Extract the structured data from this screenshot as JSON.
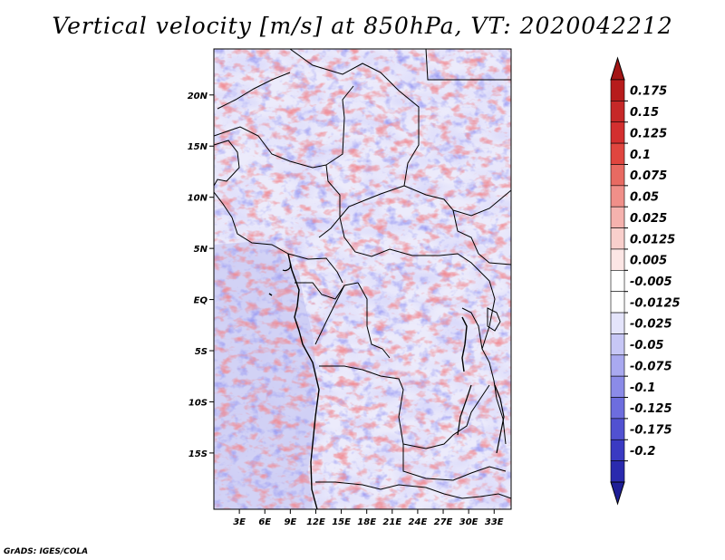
{
  "title": "Vertical velocity [m/s] at 850hPa, VT: 2020042212",
  "credit": "GrADS: IGES/COLA",
  "map": {
    "lon_range": [
      0,
      35
    ],
    "lat_range": [
      -20.5,
      24.5
    ],
    "lat_ticks": [
      {
        "value": 20,
        "label": "20N"
      },
      {
        "value": 15,
        "label": "15N"
      },
      {
        "value": 10,
        "label": "10N"
      },
      {
        "value": 5,
        "label": "5N"
      },
      {
        "value": 0,
        "label": "EQ"
      },
      {
        "value": -5,
        "label": "5S"
      },
      {
        "value": -10,
        "label": "10S"
      },
      {
        "value": -15,
        "label": "15S"
      }
    ],
    "lon_ticks": [
      {
        "value": 3,
        "label": "3E"
      },
      {
        "value": 6,
        "label": "6E"
      },
      {
        "value": 9,
        "label": "9E"
      },
      {
        "value": 12,
        "label": "12E"
      },
      {
        "value": 15,
        "label": "15E"
      },
      {
        "value": 18,
        "label": "18E"
      },
      {
        "value": 21,
        "label": "21E"
      },
      {
        "value": 24,
        "label": "24E"
      },
      {
        "value": 27,
        "label": "27E"
      },
      {
        "value": 30,
        "label": "30E"
      },
      {
        "value": 33,
        "label": "33E"
      }
    ]
  },
  "colorbar": {
    "levels": [
      {
        "label": "0.175",
        "color": "#b71c1c"
      },
      {
        "label": "0.15",
        "color": "#c62828"
      },
      {
        "label": "0.125",
        "color": "#d32f2f"
      },
      {
        "label": "0.1",
        "color": "#e0463f"
      },
      {
        "label": "0.075",
        "color": "#e86a62"
      },
      {
        "label": "0.05",
        "color": "#f08f89"
      },
      {
        "label": "0.025",
        "color": "#f5b2ae"
      },
      {
        "label": "0.0125",
        "color": "#f9cfcc"
      },
      {
        "label": "0.005",
        "color": "#fce6e5"
      },
      {
        "label": "-0.005",
        "color": "#ffffff"
      },
      {
        "label": "-0.0125",
        "color": "#e4e4fb"
      },
      {
        "label": "-0.025",
        "color": "#c7c7f6"
      },
      {
        "label": "-0.05",
        "color": "#a9a9f0"
      },
      {
        "label": "-0.075",
        "color": "#8b8be8"
      },
      {
        "label": "-0.1",
        "color": "#6d6dde"
      },
      {
        "label": "-0.125",
        "color": "#5151d1"
      },
      {
        "label": "-0.175",
        "color": "#3a3ac2"
      },
      {
        "label": "-0.2",
        "color": "#2a2aae"
      }
    ],
    "over_color": "#a31515",
    "under_color": "#1e1e96",
    "mid_color": "#ffffff"
  }
}
